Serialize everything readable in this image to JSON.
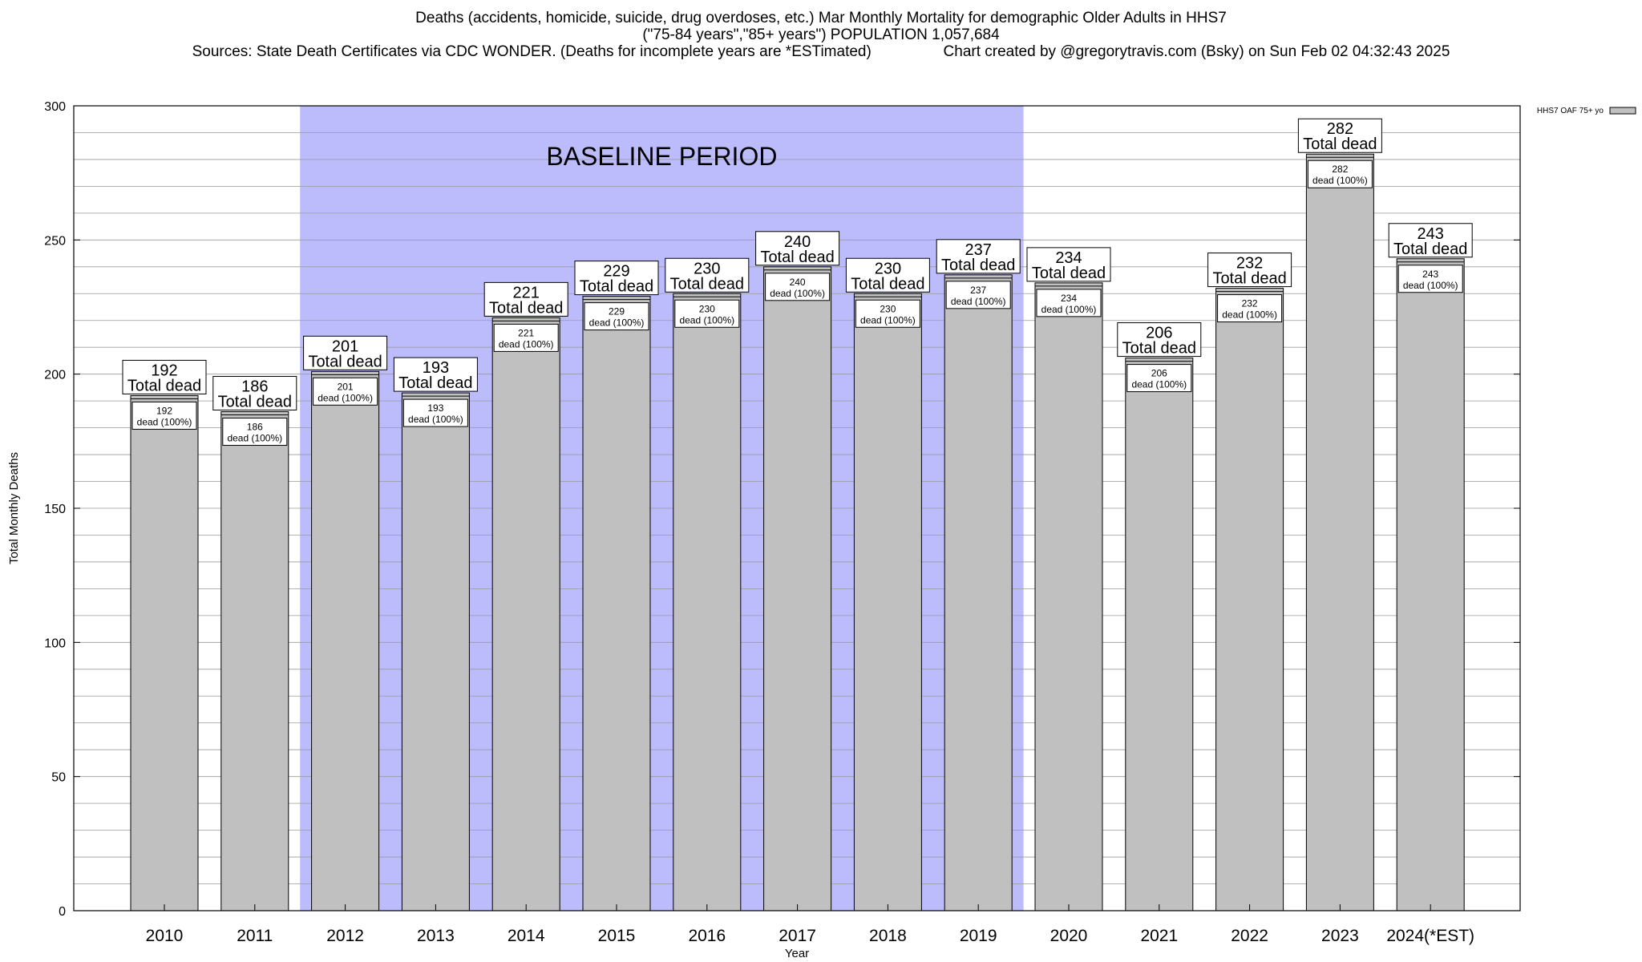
{
  "title": {
    "line1": "Deaths (accidents, homicide, suicide, drug overdoses, etc.) Mar Monthly Mortality for demographic Older Adults in HHS7",
    "line2": "(\"75-84 years\",\"85+ years\") POPULATION 1,057,684",
    "line3": "Sources: State Death Certificates via CDC WONDER. (Deaths for incomplete years are *ESTimated)                 Chart created by @gregorytravis.com (Bsky) on Sun Feb 02 04:32:43 2025"
  },
  "chart_data": {
    "type": "bar",
    "xlabel": "Year",
    "ylabel": "Total Monthly Deaths",
    "ylim": [
      0,
      300
    ],
    "yticks": [
      0,
      50,
      100,
      150,
      200,
      250,
      300
    ],
    "grid": true,
    "legend": {
      "label": "HHS7 OAF 75+ yo",
      "position": "top-right"
    },
    "categories": [
      "2010",
      "2011",
      "2012",
      "2013",
      "2014",
      "2015",
      "2016",
      "2017",
      "2018",
      "2019",
      "2020",
      "2021",
      "2022",
      "2023",
      "2024(*EST)"
    ],
    "series": [
      {
        "name": "HHS7 OAF 75+ yo",
        "values": [
          192,
          186,
          201,
          193,
          221,
          229,
          230,
          240,
          230,
          237,
          234,
          206,
          232,
          282,
          243
        ]
      }
    ],
    "total_label": "Total dead",
    "inner_label": "dead (100%)",
    "baseline": {
      "label": "BASELINE PERIOD",
      "start": "2012",
      "end": "2019",
      "color": "#bcbcfc"
    },
    "bar_color": "#c0c0c0"
  }
}
